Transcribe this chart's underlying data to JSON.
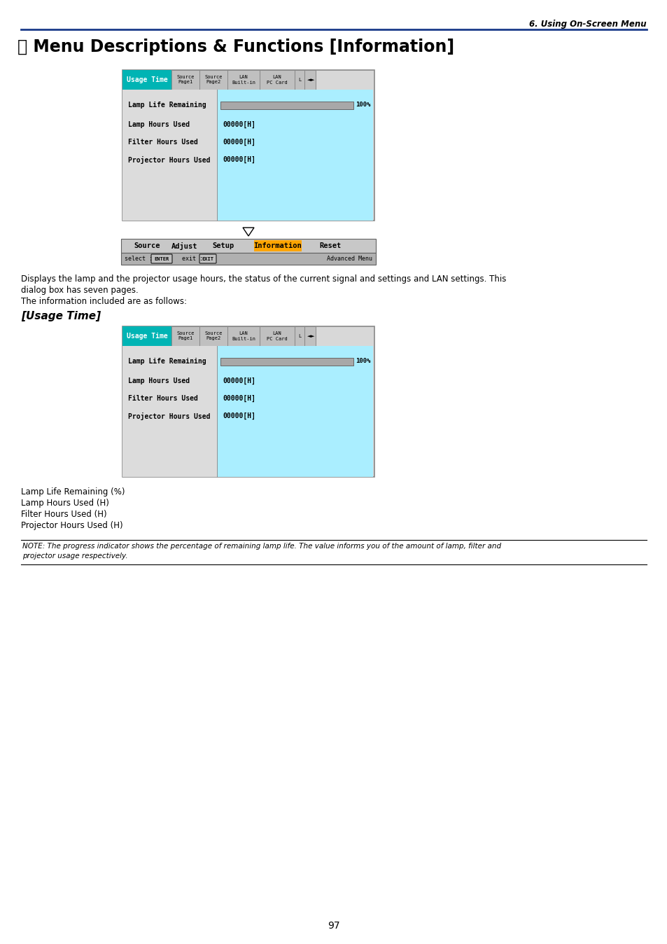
{
  "page_header_right": "6. Using On-Screen Menu",
  "main_title": "⒇ Menu Descriptions & Functions [Information]",
  "section_header": "[Usage Time]",
  "body_text1a": "Displays the lamp and the projector usage hours, the status of the current signal and settings and LAN settings. This",
  "body_text1b": "dialog box has seven pages.",
  "body_text1c": "The information included are as follows:",
  "usage_time_label": "Usage Time",
  "tab_labels": [
    "Source\nPage1",
    "Source\nPage2",
    "LAN\nBuilt-in",
    "LAN\nPC Card",
    "L"
  ],
  "row_labels": [
    "Lamp Life Remaining",
    "Lamp Hours Used",
    "Filter Hours Used",
    "Projector Hours Used"
  ],
  "row_values": [
    "100%",
    "00000[H]",
    "00000[H]",
    "00000[H]"
  ],
  "menu_bar_items": [
    "Source",
    "Adjust",
    "Setup",
    "Information",
    "Reset"
  ],
  "menu_bar_active": "Information",
  "bottom_bar_right": "Advanced Menu",
  "section2_items": [
    "Lamp Life Remaining (%)",
    "Lamp Hours Used (H)",
    "Filter Hours Used (H)",
    "Projector Hours Used (H)"
  ],
  "note_text1": "NOTE: The progress indicator shows the percentage of remaining lamp life. The value informs you of the amount of lamp, filter and",
  "note_text2": "projector usage respectively.",
  "page_number": "97",
  "teal_color": "#00B4B4",
  "orange_color": "#FFA500",
  "light_blue_bg": "#AAEEFF",
  "dialog_outer_bg": "#D8D8D8",
  "tab_bg": "#C0C0C0",
  "header_line_color": "#1a3a8a",
  "dialog_border": "#888888",
  "progress_bar_bg": "#A8A8A8",
  "status_bar_bg": "#B0B0B0",
  "menu_bar_bg": "#C8C8C8",
  "scroll_arrow_color": "#404040"
}
